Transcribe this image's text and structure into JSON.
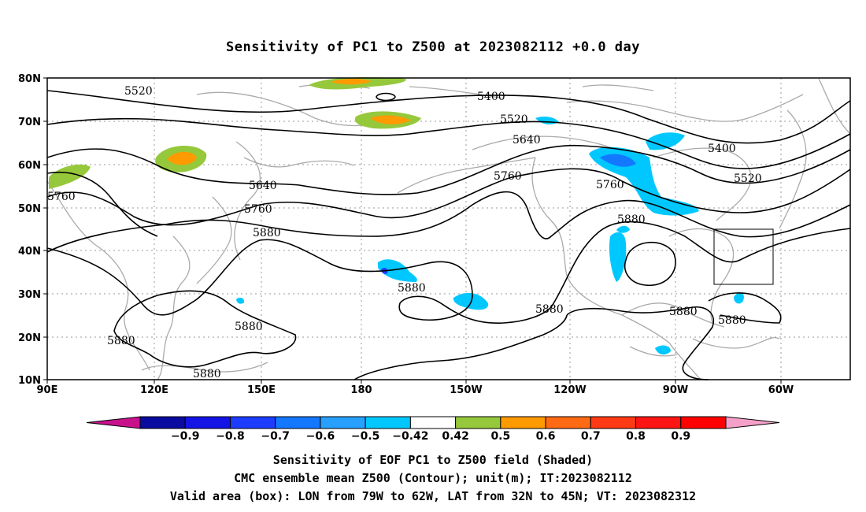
{
  "title": "Sensitivity of PC1 to Z500 at 2023082112 +0.0 day",
  "lat_ticks": [
    "80N",
    "70N",
    "60N",
    "50N",
    "40N",
    "30N",
    "20N",
    "10N"
  ],
  "lon_ticks": [
    "90E",
    "120E",
    "150E",
    "180",
    "150W",
    "120W",
    "90W",
    "60W"
  ],
  "contour_labels": [
    "5520",
    "5400",
    "5520",
    "5640",
    "5760",
    "5640",
    "5760",
    "5880",
    "5760",
    "5880",
    "5520",
    "5400",
    "5880",
    "5880",
    "5880",
    "5880",
    "5880",
    "5880",
    "5880"
  ],
  "colorbar": {
    "labels": [
      "-0.9",
      "-0.8",
      "-0.7",
      "-0.6",
      "-0.5",
      "-0.42",
      "0.42",
      "0.5",
      "0.6",
      "0.7",
      "0.8",
      "0.9"
    ],
    "colors": [
      "#c8128c",
      "#0a0aa0",
      "#1414e6",
      "#1e3cff",
      "#1478ff",
      "#28a0ff",
      "#00c8ff",
      "#ffffff",
      "#96c83c",
      "#ff9a00",
      "#ff6a14",
      "#ff3a14",
      "#ff1414",
      "#ff0000",
      "#f5a0c8"
    ]
  },
  "box": {
    "lon_west": "79W",
    "lon_east": "62W",
    "lat_south": "32N",
    "lat_north": "45N"
  },
  "captions": {
    "line1": "Sensitivity of EOF PC1 to Z500 field (Shaded)",
    "line2": "CMC ensemble mean Z500 (Contour); unit(m); IT:2023082112",
    "line3": "Valid area (box): LON from 79W to 62W, LAT from 32N to 45N; VT: 2023082312"
  }
}
